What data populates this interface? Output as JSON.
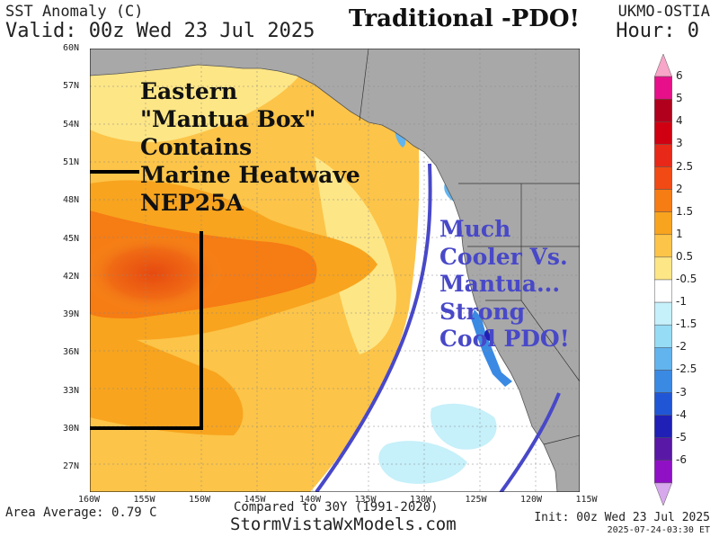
{
  "header": {
    "title": "SST Anomaly (C)",
    "valid": "Valid: 00z Wed 23 Jul 2025",
    "model": "UKMO-OSTIA",
    "hour": "Hour: 0"
  },
  "headline": "Traditional -PDO!",
  "annotations": {
    "east_box": [
      "Eastern",
      "\"Mantua Box\"",
      "Contains",
      "Marine Heatwave",
      "NEP25A"
    ],
    "cool": [
      "Much",
      "Cooler Vs.",
      "Mantua...",
      "Strong",
      "Cool PDO!"
    ]
  },
  "axes": {
    "lat_labels": [
      "60N",
      "57N",
      "54N",
      "51N",
      "48N",
      "45N",
      "42N",
      "39N",
      "36N",
      "33N",
      "30N",
      "27N"
    ],
    "lon_labels": [
      "160W",
      "155W",
      "150W",
      "145W",
      "140W",
      "135W",
      "130W",
      "125W",
      "120W",
      "115W"
    ]
  },
  "colorbar": {
    "labels": [
      "6",
      "5",
      "4",
      "3",
      "2.5",
      "2",
      "1.5",
      "1",
      "0.5",
      "-0.5",
      "-1",
      "-1.5",
      "-2",
      "-2.5",
      "-3",
      "-4",
      "-5",
      "-6"
    ],
    "colors": [
      "#f7a6c8",
      "#e8108a",
      "#b0001e",
      "#d00012",
      "#e82818",
      "#f24a14",
      "#f67c14",
      "#f8a41e",
      "#fcc448",
      "#fde686",
      "#ffffff",
      "#c6f0fa",
      "#96dcf4",
      "#62b4ee",
      "#3a8ae4",
      "#2056d6",
      "#2020b6",
      "#5a18a6",
      "#9010c6",
      "#d8a8ec"
    ]
  },
  "footer": {
    "area_average": "Area Average: 0.79 C",
    "compared": "Compared to 30Y (1991-2020)",
    "site": "StormVistaWxModels.com",
    "init": "Init: 00z Wed 23 Jul 2025",
    "timestamp": "2025-07-24-03:30 ET"
  }
}
